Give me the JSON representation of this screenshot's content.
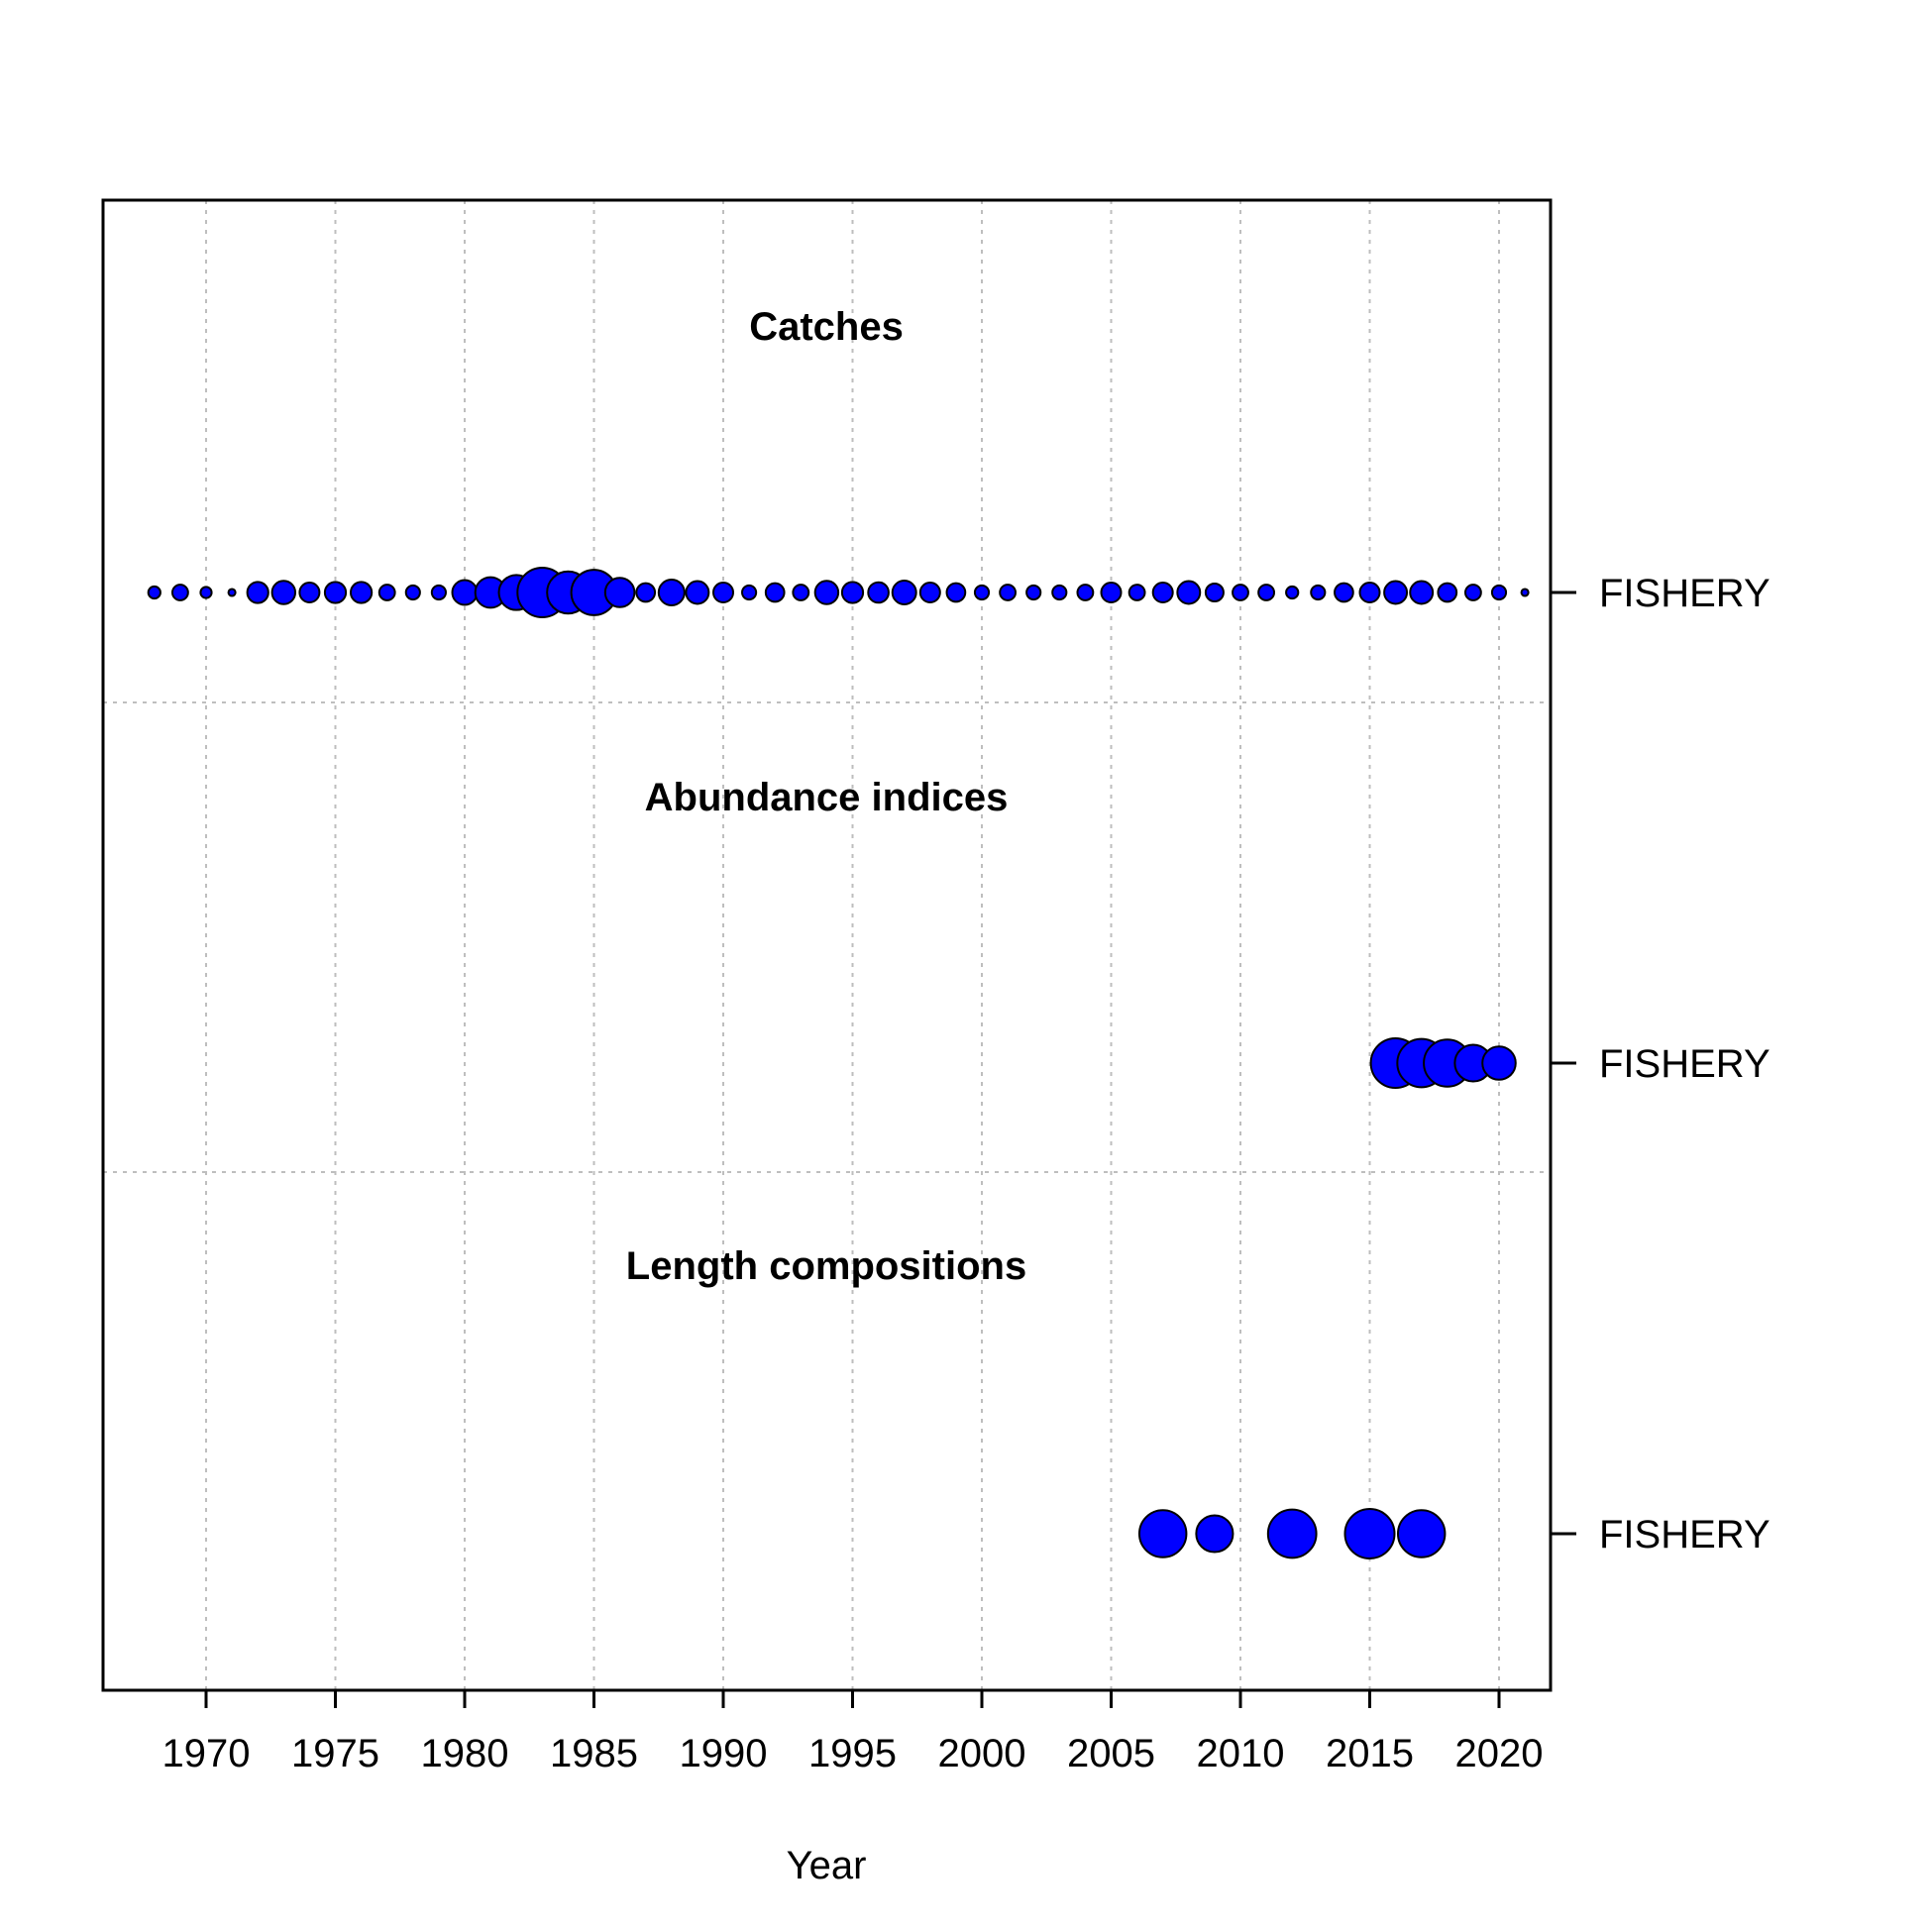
{
  "chart_data": {
    "type": "scatter",
    "subtype": "data-availability-bubble",
    "xlabel": "Year",
    "xlim": [
      1966,
      2022
    ],
    "xticks": [
      1970,
      1975,
      1980,
      1985,
      1990,
      1995,
      2000,
      2005,
      2010,
      2015,
      2020
    ],
    "grid": true,
    "colors": {
      "bubble_fill": "#0000ff",
      "bubble_stroke": "#000000",
      "grid": "#bebebe"
    },
    "panels": [
      {
        "title": "Catches",
        "row_label": "FISHERY",
        "years": [
          1968,
          1969,
          1970,
          1971,
          1972,
          1973,
          1974,
          1975,
          1976,
          1977,
          1978,
          1979,
          1980,
          1981,
          1982,
          1983,
          1984,
          1985,
          1986,
          1987,
          1988,
          1989,
          1990,
          1991,
          1992,
          1993,
          1994,
          1995,
          1996,
          1997,
          1998,
          1999,
          2000,
          2001,
          2002,
          2003,
          2004,
          2005,
          2006,
          2007,
          2008,
          2009,
          2010,
          2011,
          2012,
          2013,
          2014,
          2015,
          2016,
          2017,
          2018,
          2019,
          2020,
          2021
        ],
        "values": [
          0.06,
          0.1,
          0.05,
          0.02,
          0.18,
          0.22,
          0.16,
          0.18,
          0.18,
          0.1,
          0.08,
          0.08,
          0.25,
          0.38,
          0.5,
          1.0,
          0.72,
          0.84,
          0.35,
          0.14,
          0.27,
          0.21,
          0.16,
          0.08,
          0.14,
          0.1,
          0.22,
          0.18,
          0.17,
          0.23,
          0.16,
          0.14,
          0.08,
          0.1,
          0.08,
          0.08,
          0.1,
          0.16,
          0.1,
          0.16,
          0.21,
          0.13,
          0.1,
          0.1,
          0.06,
          0.08,
          0.14,
          0.16,
          0.21,
          0.21,
          0.14,
          0.1,
          0.08,
          0.02
        ]
      },
      {
        "title": "Abundance indices",
        "row_label": "FISHERY",
        "years": [
          2016,
          2017,
          2018,
          2019,
          2020
        ],
        "values": [
          1.0,
          0.95,
          0.9,
          0.55,
          0.45
        ]
      },
      {
        "title": "Length compositions",
        "row_label": "FISHERY",
        "years": [
          2007,
          2009,
          2012,
          2015,
          2017
        ],
        "values": [
          0.9,
          0.55,
          0.95,
          1.0,
          0.9
        ]
      }
    ]
  }
}
